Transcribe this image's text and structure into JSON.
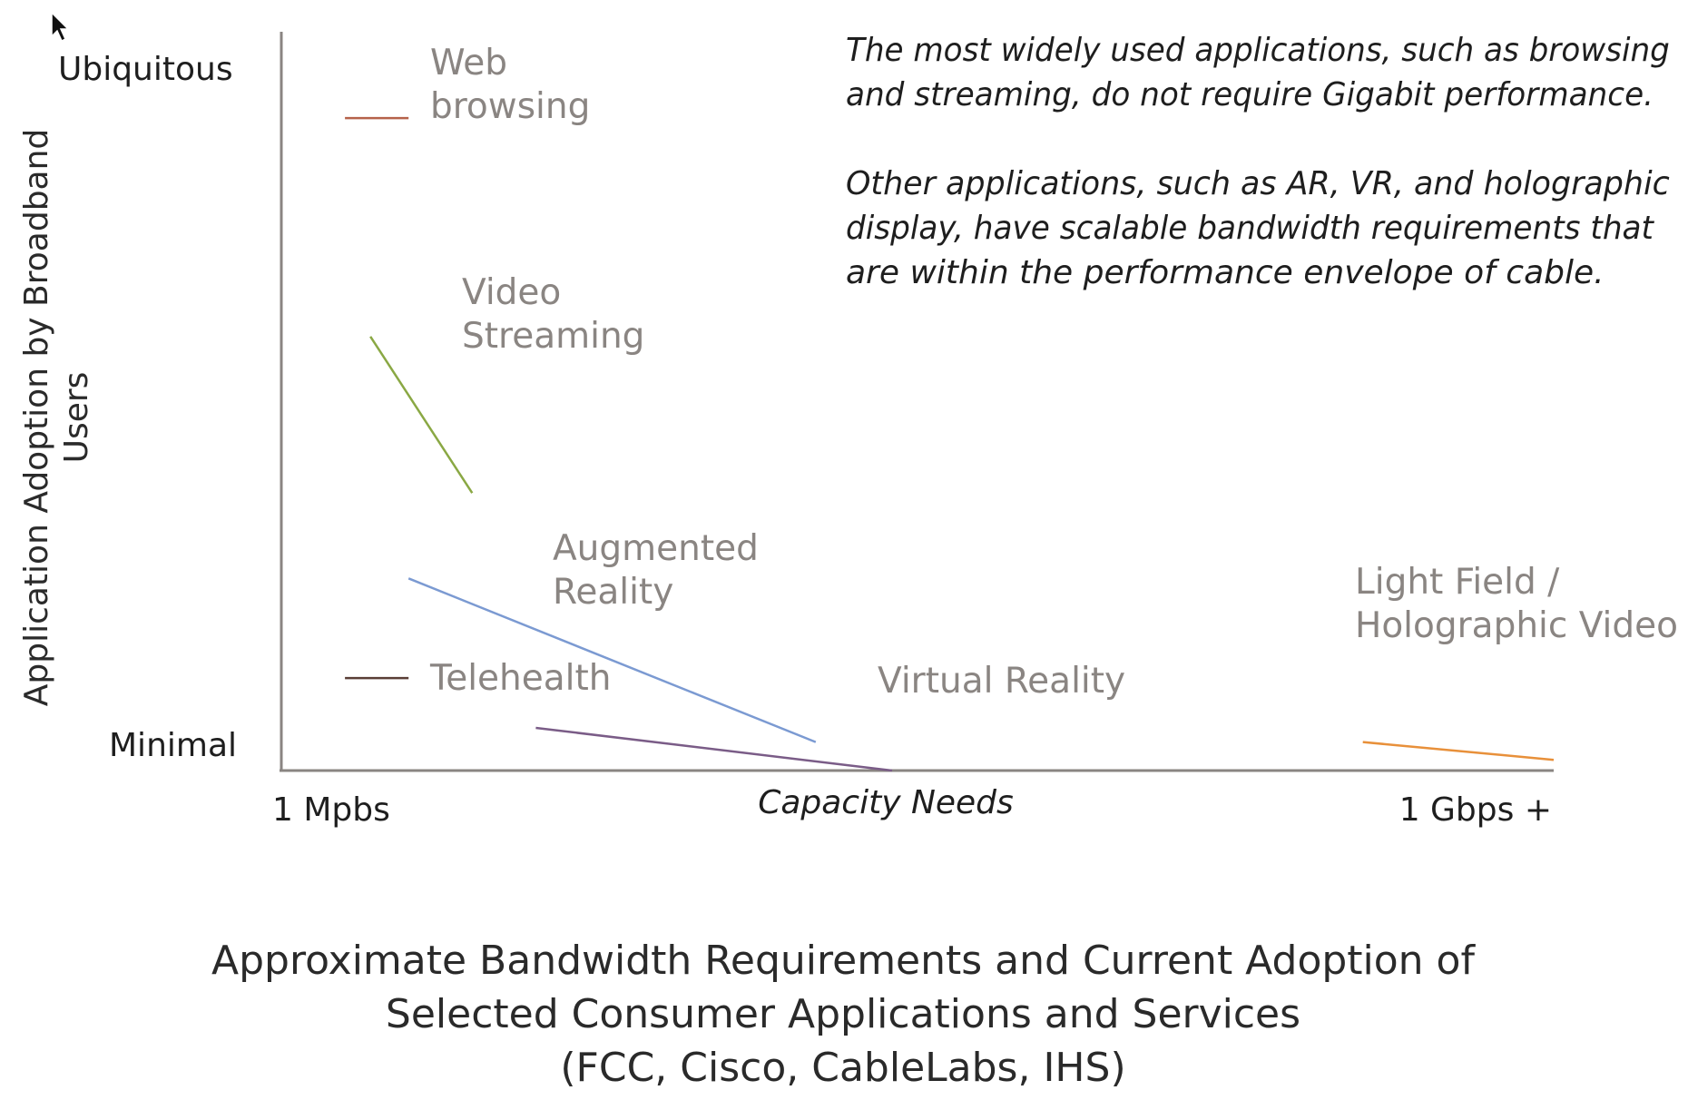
{
  "chart_data": {
    "type": "line",
    "xlabel": "Capacity Needs",
    "ylabel": "Application Adoption by Broadband Users",
    "x_ticks": [
      "1 Mpbs",
      "1 Gbps +"
    ],
    "y_ticks": [
      "Minimal",
      "Ubiquitous"
    ],
    "xlim": [
      0,
      1
    ],
    "ylim": [
      0,
      1
    ],
    "grid": false,
    "legend": "none",
    "annotation": [
      "The most widely used applications, such as browsing",
      "and streaming, do not require Gigabit performance.",
      "",
      "Other applications, such as AR, VR, and holographic",
      "display, have scalable bandwidth requirements that",
      "are within the performance envelope of cable."
    ],
    "caption": [
      "Approximate Bandwidth Requirements and Current Adoption of",
      "Selected Consumer Applications and Services",
      "(FCC, Cisco, CableLabs, IHS)"
    ],
    "series": [
      {
        "name": "Web browsing",
        "label_lines": [
          "Web",
          "browsing"
        ],
        "color": "#b5624a",
        "x": [
          0.05,
          0.1
        ],
        "y": [
          0.917,
          0.917
        ]
      },
      {
        "name": "Video Streaming",
        "label_lines": [
          "Video",
          "Streaming"
        ],
        "color": "#8aa844",
        "x": [
          0.07,
          0.15
        ],
        "y": [
          0.61,
          0.39
        ]
      },
      {
        "name": "Augmented Reality",
        "label_lines": [
          "Augmented",
          "Reality"
        ],
        "color": "#7b9ad2",
        "x": [
          0.1,
          0.42
        ],
        "y": [
          0.27,
          0.04
        ]
      },
      {
        "name": "Telehealth",
        "label_lines": [
          "Telehealth"
        ],
        "color": "#5a3e36",
        "x": [
          0.05,
          0.1
        ],
        "y": [
          0.13,
          0.13
        ]
      },
      {
        "name": "Virtual Reality",
        "label_lines": [
          "Virtual Reality"
        ],
        "color": "#7a5c87",
        "x": [
          0.2,
          0.48
        ],
        "y": [
          0.06,
          0.0
        ]
      },
      {
        "name": "Light Field / Holographic Video",
        "label_lines": [
          "Light Field /",
          "Holographic Video"
        ],
        "color": "#e8903a",
        "x": [
          0.85,
          1.0
        ],
        "y": [
          0.04,
          0.015
        ]
      }
    ]
  }
}
